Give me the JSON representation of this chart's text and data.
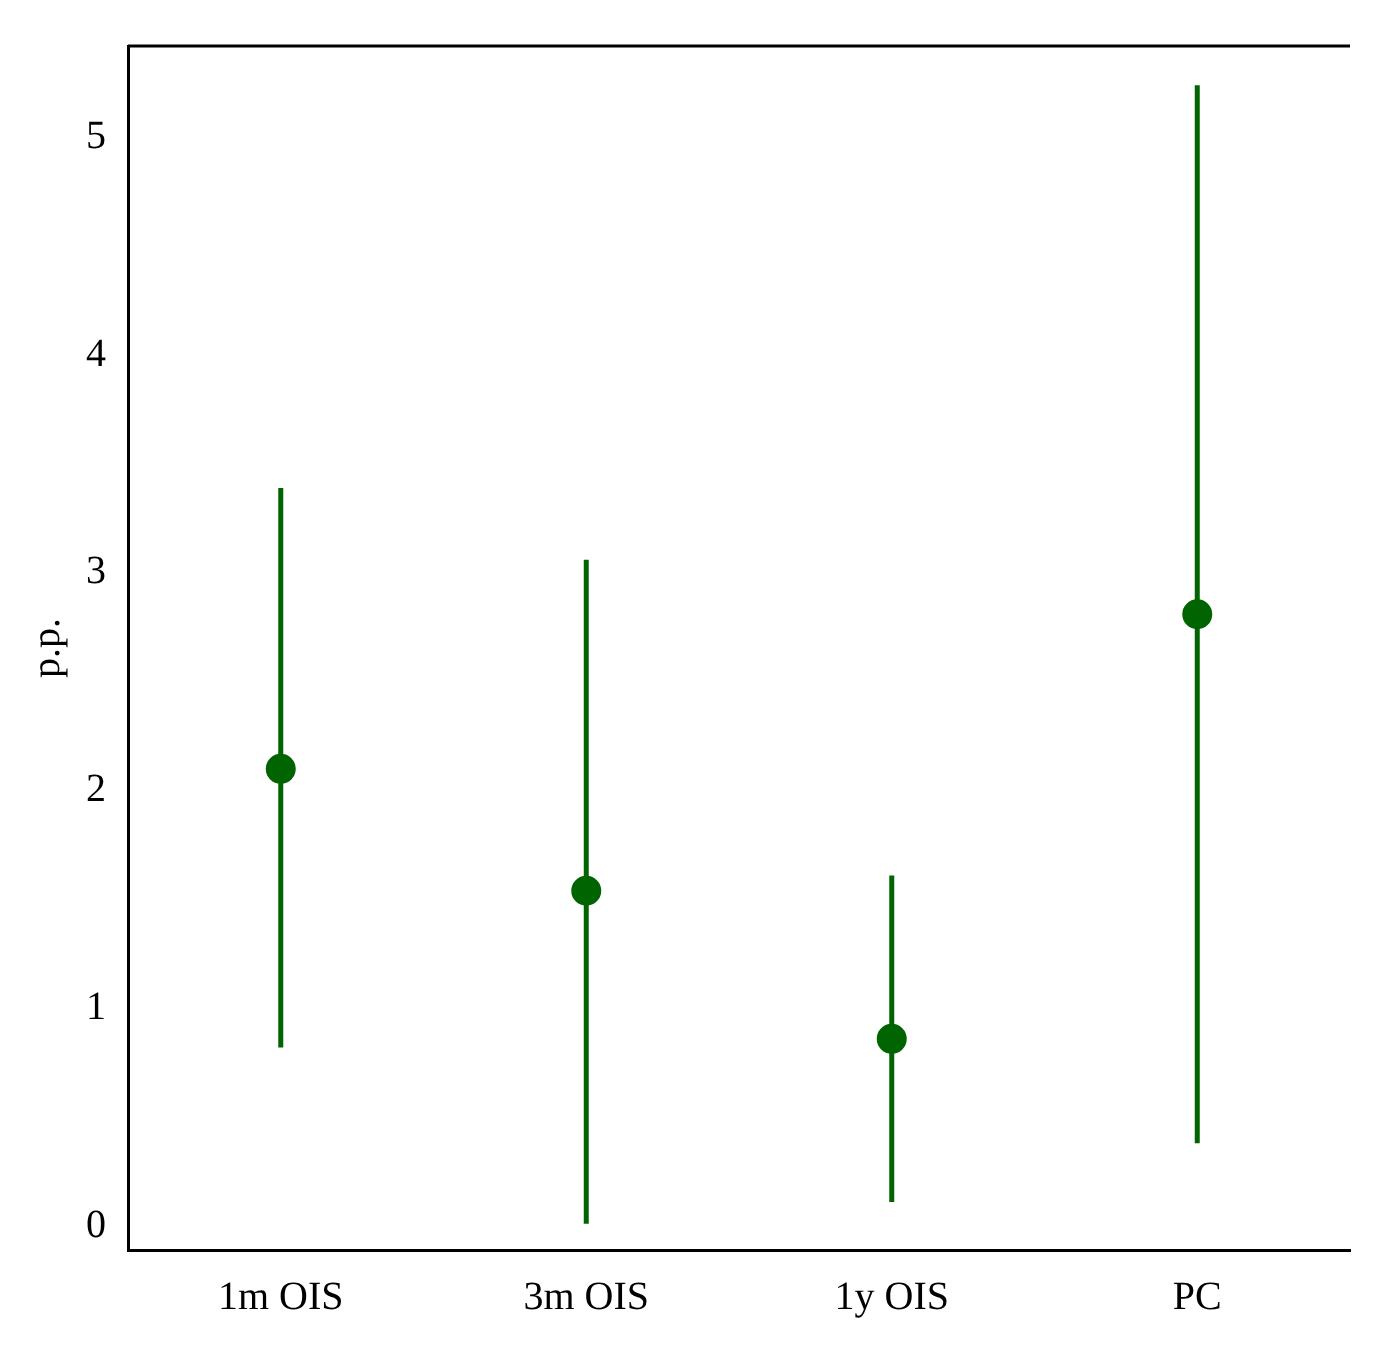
{
  "chart_data": {
    "type": "scatter",
    "ylabel": "p.p.",
    "categories": [
      "1m OIS",
      "3m OIS",
      "1y OIS",
      "PC"
    ],
    "series": [
      {
        "color": "#006400",
        "values": [
          2.1,
          1.54,
          0.86,
          2.81
        ],
        "errors": [
          [
            0.82,
            3.39
          ],
          [
            0.01,
            3.06
          ],
          [
            0.11,
            1.61
          ],
          [
            0.38,
            5.24
          ]
        ]
      }
    ],
    "ylim": [
      -0.11,
      5.42
    ],
    "yticks": [
      0,
      1,
      2,
      3,
      4,
      5
    ],
    "grid": false,
    "legend": false,
    "marker": "circle"
  }
}
